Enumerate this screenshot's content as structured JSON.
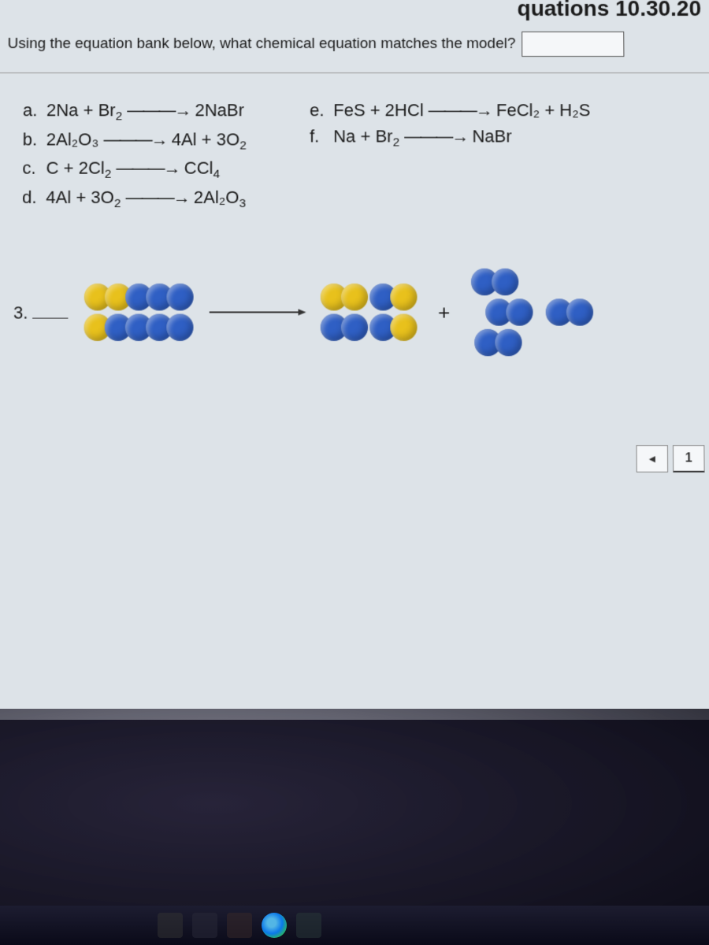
{
  "header_fragment": "quations 10.30.20",
  "question": "Using the equation bank below, what chemical equation matches the model?",
  "equations": {
    "left": [
      {
        "label": "a.",
        "lhs": "2Na + Br",
        "lhs_sub": "2",
        "rhs": "2NaBr",
        "rhs_sub": ""
      },
      {
        "label": "b.",
        "lhs": "2Al₂O₃",
        "lhs_sub": "",
        "rhs": "4Al + 3O",
        "rhs_sub": "2"
      },
      {
        "label": "c.",
        "lhs": "C + 2Cl",
        "lhs_sub": "2",
        "rhs": "CCl",
        "rhs_sub": "4"
      },
      {
        "label": "d.",
        "lhs": "4Al + 3O",
        "lhs_sub": "2",
        "rhs": "2Al₂O",
        "rhs_sub": "3"
      }
    ],
    "right": [
      {
        "label": "e.",
        "lhs": "FeS + 2HCl",
        "lhs_sub": "",
        "rhs": "FeCl₂ + H₂S",
        "rhs_sub": ""
      },
      {
        "label": "f.",
        "lhs": "Na + Br",
        "lhs_sub": "2",
        "rhs": "NaBr",
        "rhs_sub": ""
      }
    ]
  },
  "arrow": "———→",
  "model": {
    "number": "3.",
    "reactant_rows": [
      [
        "yellow",
        "yellow",
        "blue",
        "blue",
        "blue"
      ],
      [
        "yellow",
        "blue",
        "blue",
        "blue",
        "blue"
      ]
    ],
    "product_left_pairs": [
      [
        "yellow",
        "yellow"
      ],
      [
        "blue",
        "yellow"
      ],
      [
        "blue",
        "blue"
      ],
      [
        "blue",
        "yellow"
      ]
    ],
    "plus": "+",
    "product_right_rows": [
      [
        "blue",
        "blue"
      ],
      [
        "blue",
        "blue"
      ],
      [
        "blue",
        "blue"
      ]
    ],
    "product_right_extra": [
      "blue",
      "blue"
    ]
  },
  "colors": {
    "yellow": "#e8c11c",
    "blue": "#2f5fc4",
    "background": "#dde3e8",
    "text": "#1a1a1a"
  },
  "nav": {
    "prev": "◂",
    "current": "1"
  }
}
